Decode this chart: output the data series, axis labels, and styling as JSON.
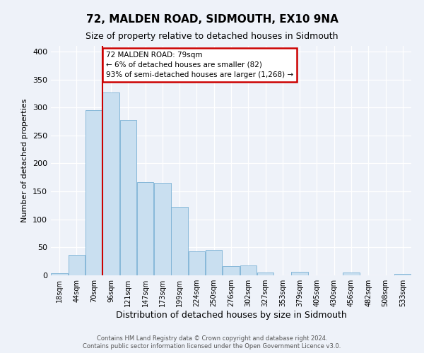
{
  "title": "72, MALDEN ROAD, SIDMOUTH, EX10 9NA",
  "subtitle": "Size of property relative to detached houses in Sidmouth",
  "xlabel": "Distribution of detached houses by size in Sidmouth",
  "ylabel": "Number of detached properties",
  "footer_line1": "Contains HM Land Registry data © Crown copyright and database right 2024.",
  "footer_line2": "Contains public sector information licensed under the Open Government Licence v3.0.",
  "bin_labels": [
    "18sqm",
    "44sqm",
    "70sqm",
    "96sqm",
    "121sqm",
    "147sqm",
    "173sqm",
    "199sqm",
    "224sqm",
    "250sqm",
    "276sqm",
    "302sqm",
    "327sqm",
    "353sqm",
    "379sqm",
    "405sqm",
    "430sqm",
    "456sqm",
    "482sqm",
    "508sqm",
    "533sqm"
  ],
  "bar_heights": [
    4,
    37,
    295,
    327,
    278,
    167,
    165,
    122,
    43,
    46,
    16,
    18,
    5,
    0,
    6,
    0,
    0,
    5,
    0,
    0,
    2
  ],
  "bar_color": "#c9dff0",
  "bar_edge_color": "#7ab0d4",
  "property_label": "72 MALDEN ROAD: 79sqm",
  "annotation_line2": "← 6% of detached houses are smaller (82)",
  "annotation_line3": "93% of semi-detached houses are larger (1,268) →",
  "annotation_box_color": "#ffffff",
  "annotation_box_edge": "#cc0000",
  "vline_color": "#cc0000",
  "vline_x_idx": 2.5,
  "ylim_max": 410,
  "yticks": [
    0,
    50,
    100,
    150,
    200,
    250,
    300,
    350,
    400
  ],
  "background_color": "#eef2f9",
  "grid_color": "#ffffff",
  "title_fontsize": 11,
  "subtitle_fontsize": 9,
  "ylabel_fontsize": 8,
  "xlabel_fontsize": 9,
  "tick_fontsize": 7,
  "annot_fontsize": 7.5,
  "footer_fontsize": 6
}
